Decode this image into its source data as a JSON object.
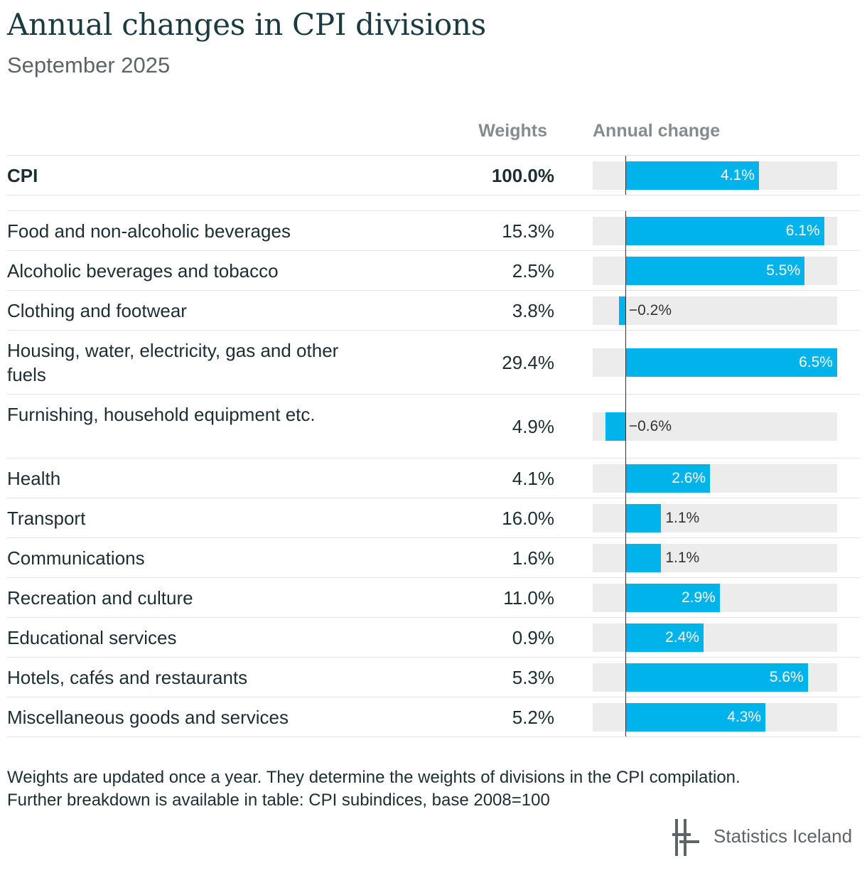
{
  "title": "Annual changes in CPI divisions",
  "subtitle": "September 2025",
  "columns": {
    "weights": "Weights",
    "annual_change": "Annual change"
  },
  "notes": [
    "Weights are updated once a year. They determine the weights of divisions in the CPI compilation.",
    "Further breakdown is available in table: CPI subindices, base 2008=100"
  ],
  "source": "Statistics Iceland",
  "colors": {
    "bar": "#00b3ea",
    "track": "#ececec",
    "title": "#1c3b40"
  },
  "chart_data": {
    "type": "bar",
    "orientation": "horizontal",
    "x_range": [
      -1,
      6.5
    ],
    "categories": [
      "CPI",
      "Food and non-alcoholic beverages",
      "Alcoholic beverages and tobacco",
      "Clothing and footwear",
      "Housing, water, electricity, gas and other fuels",
      "Furnishing, household equipment etc.",
      "Health",
      "Transport",
      "Communications",
      "Recreation and culture",
      "Educational services",
      "Hotels, cafés and restaurants",
      "Miscellaneous goods and services"
    ],
    "weights": [
      "100.0%",
      "15.3%",
      "2.5%",
      "3.8%",
      "29.4%",
      "4.9%",
      "4.1%",
      "16.0%",
      "1.6%",
      "11.0%",
      "0.9%",
      "5.3%",
      "5.2%"
    ],
    "values": [
      4.1,
      6.1,
      5.5,
      -0.2,
      6.5,
      -0.6,
      2.6,
      1.1,
      1.1,
      2.9,
      2.4,
      5.6,
      4.3
    ],
    "value_labels": [
      "4.1%",
      "6.1%",
      "5.5%",
      "−0.2%",
      "6.5%",
      "−0.6%",
      "2.6%",
      "1.1%",
      "1.1%",
      "2.9%",
      "2.4%",
      "5.6%",
      "4.3%"
    ]
  }
}
